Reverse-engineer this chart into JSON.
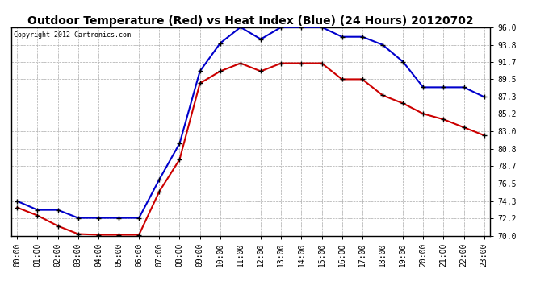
{
  "title": "Outdoor Temperature (Red) vs Heat Index (Blue) (24 Hours) 20120702",
  "copyright": "Copyright 2012 Cartronics.com",
  "hours": [
    "00:00",
    "01:00",
    "02:00",
    "03:00",
    "04:00",
    "05:00",
    "06:00",
    "07:00",
    "08:00",
    "09:00",
    "10:00",
    "11:00",
    "12:00",
    "13:00",
    "14:00",
    "15:00",
    "16:00",
    "17:00",
    "18:00",
    "19:00",
    "20:00",
    "21:00",
    "22:00",
    "23:00"
  ],
  "temp_red": [
    73.5,
    72.5,
    71.2,
    70.2,
    70.1,
    70.1,
    70.1,
    75.5,
    79.5,
    89.0,
    90.5,
    91.5,
    90.5,
    91.5,
    91.5,
    91.5,
    89.5,
    89.5,
    87.5,
    86.5,
    85.2,
    84.5,
    83.5,
    82.5
  ],
  "heat_blue": [
    74.3,
    73.2,
    73.2,
    72.2,
    72.2,
    72.2,
    72.2,
    77.0,
    81.5,
    90.5,
    94.0,
    96.0,
    94.5,
    96.0,
    96.0,
    96.0,
    94.8,
    94.8,
    93.8,
    91.7,
    88.5,
    88.5,
    88.5,
    87.3
  ],
  "ylim": [
    70.0,
    96.0
  ],
  "yticks": [
    70.0,
    72.2,
    74.3,
    76.5,
    78.7,
    80.8,
    83.0,
    85.2,
    87.3,
    89.5,
    91.7,
    93.8,
    96.0
  ],
  "red_color": "#cc0000",
  "blue_color": "#0000cc",
  "bg_color": "#ffffff",
  "plot_bg_color": "#ffffff",
  "grid_color": "#aaaaaa",
  "title_fontsize": 10,
  "copyright_fontsize": 6,
  "tick_fontsize": 7
}
